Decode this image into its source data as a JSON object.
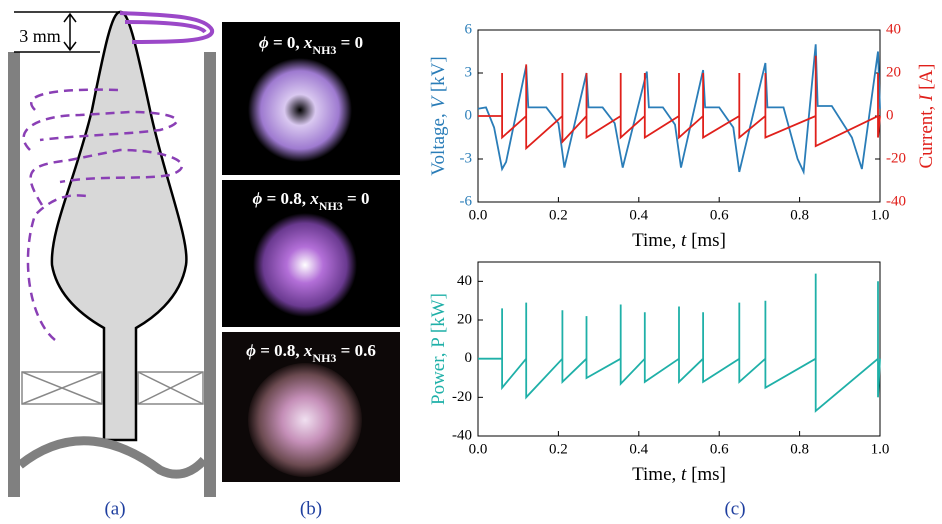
{
  "panel_a": {
    "label": "(a)",
    "dimension": "3 mm"
  },
  "panel_b": {
    "label": "(b)",
    "captions": [
      [
        "ϕ",
        " = 0, ",
        "x",
        "NH3",
        " = 0"
      ],
      [
        "ϕ",
        " = 0.8, ",
        "x",
        "NH3",
        " = 0"
      ],
      [
        "ϕ",
        " = 0.8, ",
        "x",
        "NH3",
        " = 0.6"
      ]
    ]
  },
  "panel_c": {
    "label": "(c)"
  },
  "chart_data": [
    {
      "type": "line",
      "xlabel": [
        "Time, ",
        "t",
        " [ms]"
      ],
      "ylabel": [
        "Voltage, ",
        "V",
        " [kV]"
      ],
      "y2label": [
        "Current, ",
        "I",
        " [A]"
      ],
      "xlim": [
        0,
        1
      ],
      "xticks": [
        {
          "value": 0,
          "label": "0.0"
        },
        0.2,
        0.4,
        0.6,
        0.8,
        {
          "value": 1,
          "label": "1.0"
        }
      ],
      "ylim": [
        -6,
        6
      ],
      "yticks": [
        -6,
        -3,
        0,
        3,
        6
      ],
      "y2lim": [
        -40,
        40
      ],
      "y2ticks": [
        -40,
        -20,
        0,
        20,
        40
      ],
      "series": [
        {
          "color": "#2a7db8",
          "x": [
            0,
            0.02,
            0.04,
            0.06,
            0.07,
            0.12,
            0.125,
            0.17,
            0.2,
            0.215,
            0.27,
            0.275,
            0.31,
            0.34,
            0.36,
            0.42,
            0.425,
            0.46,
            0.49,
            0.505,
            0.56,
            0.565,
            0.6,
            0.635,
            0.65,
            0.715,
            0.72,
            0.76,
            0.795,
            0.81,
            0.84,
            0.845,
            0.88,
            0.93,
            0.955,
            0.995,
            1.0
          ],
          "values": [
            0.5,
            0.6,
            -0.8,
            -3.7,
            -3.2,
            3.5,
            0.6,
            0.6,
            -0.5,
            -3.6,
            3.0,
            0.6,
            0.6,
            -0.5,
            -3.6,
            3.1,
            0.6,
            0.6,
            -0.6,
            -3.6,
            3.2,
            0.6,
            0.6,
            -0.8,
            -3.9,
            3.7,
            0.6,
            0.6,
            -3.0,
            -3.9,
            5.0,
            0.7,
            0.7,
            -1.5,
            -3.7,
            4.5,
            0.5
          ]
        },
        {
          "color": "#e0201b",
          "axis": "y2",
          "x": [
            0,
            0.06,
            0.06,
            0.06,
            0.12,
            0.12,
            0.12,
            0.21,
            0.21,
            0.21,
            0.27,
            0.27,
            0.27,
            0.355,
            0.355,
            0.355,
            0.415,
            0.415,
            0.415,
            0.5,
            0.5,
            0.5,
            0.56,
            0.56,
            0.56,
            0.65,
            0.65,
            0.65,
            0.715,
            0.715,
            0.715,
            0.84,
            0.84,
            0.84,
            0.995,
            0.995,
            0.995,
            1.0
          ],
          "values": [
            0,
            0,
            20,
            -10,
            0,
            24,
            -15,
            0,
            20,
            -12,
            0,
            20,
            -10,
            0,
            20,
            -10,
            0,
            20,
            -10,
            0,
            20,
            -10,
            0,
            20,
            -10,
            0,
            20,
            -10,
            0,
            20,
            -10,
            0,
            28,
            -14,
            0,
            20,
            -10,
            0
          ]
        }
      ]
    },
    {
      "type": "line",
      "xlabel": [
        "Time, ",
        "t",
        " [ms]"
      ],
      "ylabel": [
        "Power, P [kW]"
      ],
      "xlim": [
        0,
        1
      ],
      "xticks": [
        {
          "value": 0,
          "label": "0.0"
        },
        0.2,
        0.4,
        0.6,
        0.8,
        {
          "value": 1,
          "label": "1.0"
        }
      ],
      "ylim": [
        -40,
        50
      ],
      "yticks": [
        -40,
        -20,
        0,
        20,
        40
      ],
      "series": [
        {
          "color": "#1fb0a8",
          "x": [
            0,
            0.06,
            0.06,
            0.06,
            0.12,
            0.12,
            0.12,
            0.21,
            0.21,
            0.21,
            0.27,
            0.27,
            0.27,
            0.355,
            0.355,
            0.355,
            0.415,
            0.415,
            0.415,
            0.5,
            0.5,
            0.5,
            0.56,
            0.56,
            0.56,
            0.65,
            0.65,
            0.65,
            0.715,
            0.715,
            0.715,
            0.84,
            0.84,
            0.84,
            0.995,
            0.995,
            0.995,
            1.0
          ],
          "values": [
            0,
            0,
            26,
            -15,
            0,
            29,
            -20,
            0,
            25,
            -12,
            0,
            22,
            -10,
            0,
            28,
            -13,
            0,
            24,
            -12,
            0,
            27,
            -12,
            0,
            24,
            -12,
            0,
            29,
            -12,
            0,
            30,
            -15,
            0,
            44,
            -27,
            0,
            40,
            -20,
            0
          ]
        }
      ]
    }
  ]
}
